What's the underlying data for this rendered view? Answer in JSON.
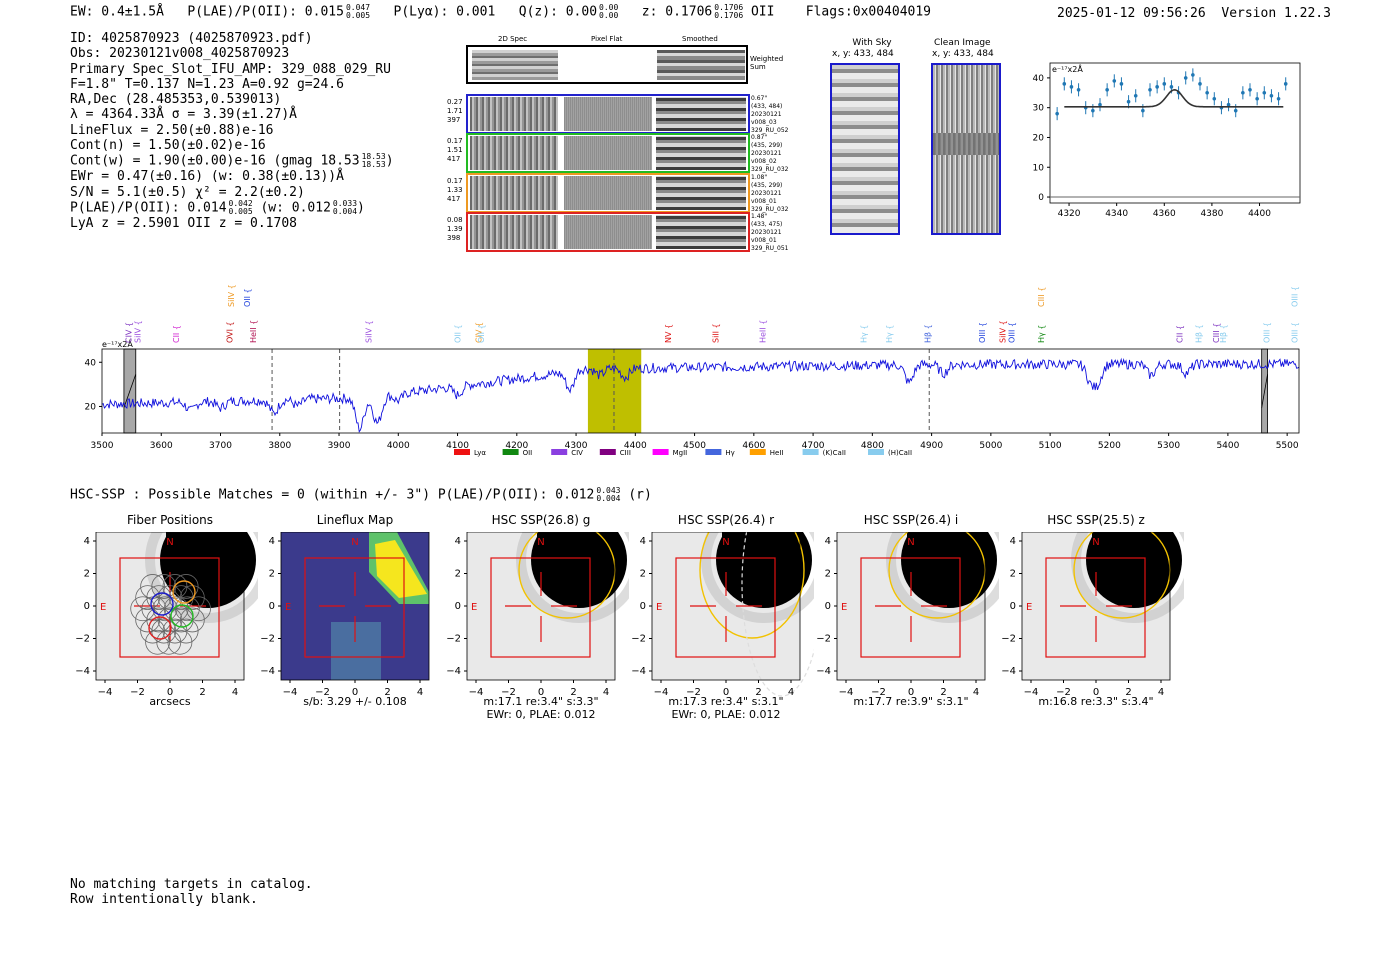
{
  "header": {
    "ew": "EW: 0.4±1.5Å",
    "plae_label": "P(LAE)/P(OII): 0.015",
    "plae_up": "0.047",
    "plae_lo": "0.005",
    "plya": "P(Lyα): 0.001",
    "qz_label": "Q(z): 0.00",
    "qz_up": "0.00",
    "qz_lo": "0.00",
    "z_label": "z: 0.1706",
    "z_up": "0.1706",
    "z_lo": "0.1706",
    "z_line": "OII",
    "flags": "Flags:0x00404019",
    "datetime": "2025-01-12 09:56:26",
    "version": "Version 1.22.3"
  },
  "info": {
    "id": "ID: 4025870923 (4025870923.pdf)",
    "obs": "Obs: 20230121v008_4025870923",
    "primary": "Primary Spec_Slot_IFU_AMP: 329_088_029_RU",
    "params": "F=1.8\"  T=0.137  N=1.23  A=0.92  g=24.6",
    "radec": "RA,Dec (28.485353,0.539013)",
    "lambda": "λ = 4364.33Å  σ = 3.39(±1.27)Å",
    "lineflux": "LineFlux = 2.50(±0.88)e-16",
    "contn": "Cont(n) = 1.50(±0.02)e-16",
    "contw": "Cont(w) = 1.90(±0.00)e-16 (gmag 18.53",
    "gmag_up": "18.53",
    "gmag_lo": "18.53",
    "ewr": "EWr = 0.47(±0.16) (w: 0.38(±0.13))Å",
    "sn": "S/N = 5.1(±0.5)  χ² = 2.2(±0.2)",
    "plae2": "P(LAE)/P(OII): 0.014",
    "plae2_up": "0.042",
    "plae2_lo": "0.005",
    "plae2_w": "(w: 0.012",
    "plae2_w_up": "0.033",
    "plae2_w_lo": "0.004",
    "lya": "LyA z = 2.5901  OII z = 0.1708"
  },
  "cutouts": {
    "col_headers": [
      "2D Spec",
      "Pixel Flat",
      "Smoothed"
    ],
    "weighted_label": [
      "Weighted",
      "Sum"
    ],
    "rows": [
      {
        "left": [
          "0.27",
          "1.71",
          "397"
        ],
        "right": [
          "0.67\"",
          "(433, 484)",
          "20230121",
          "v008_03",
          "329_RU_052"
        ],
        "color": "#2222cc"
      },
      {
        "left": [
          "0.17",
          "1.51",
          "417"
        ],
        "right": [
          "0.87\"",
          "(435, 299)",
          "20230121",
          "v008_02",
          "329_RU_032"
        ],
        "color": "#22bb22"
      },
      {
        "left": [
          "0.17",
          "1.33",
          "417"
        ],
        "right": [
          "1.08\"",
          "(435, 299)",
          "20230121",
          "v008_01",
          "329_RU_032"
        ],
        "color": "#ee9922"
      },
      {
        "left": [
          "0.08",
          "1.39",
          "398"
        ],
        "right": [
          "1.48\"",
          "(433, 475)",
          "20230121",
          "v008_01",
          "329_RU_051"
        ],
        "color": "#dd2222"
      }
    ],
    "with_sky": [
      "With Sky",
      "x, y: 433, 484"
    ],
    "clean_image": [
      "Clean Image",
      "x, y: 433, 484"
    ]
  },
  "zoom_chart_data": {
    "type": "scatter",
    "ylabel_unit": "e⁻¹⁷x2Å",
    "xticks": [
      4320,
      4340,
      4360,
      4380,
      4400
    ],
    "yticks": [
      0,
      10,
      20,
      30,
      40
    ],
    "xlim": [
      4312,
      4417
    ],
    "ylim": [
      -2,
      45
    ],
    "points_x": [
      4315,
      4318,
      4321,
      4324,
      4327,
      4330,
      4333,
      4336,
      4339,
      4342,
      4345,
      4348,
      4351,
      4354,
      4357,
      4360,
      4363,
      4366,
      4369,
      4372,
      4375,
      4378,
      4381,
      4384,
      4387,
      4390,
      4393,
      4396,
      4399,
      4402,
      4405,
      4408,
      4411
    ],
    "points_y": [
      28,
      38,
      37,
      36,
      30,
      29,
      31,
      36,
      39,
      38,
      32,
      34,
      29,
      36,
      37,
      38,
      37,
      35,
      40,
      41,
      38,
      35,
      33,
      30,
      31,
      29,
      35,
      36,
      33,
      35,
      34,
      33,
      38
    ],
    "model_baseline": 30.3,
    "model_peak_x": 4364.3,
    "model_amp": 5.7,
    "model_sigma": 3.39
  },
  "spectrum_chart_data": {
    "type": "line",
    "ylabel_unit": "e⁻¹⁷x2Å",
    "xticks": [
      3500,
      3600,
      3700,
      3800,
      3900,
      4000,
      4100,
      4200,
      4300,
      4400,
      4500,
      4600,
      4700,
      4800,
      4900,
      5000,
      5100,
      5200,
      5300,
      5400,
      5500
    ],
    "yticks": [
      20,
      40
    ],
    "xlim": [
      3500,
      5520
    ],
    "ylim": [
      8,
      46
    ],
    "highlight_band": [
      4320,
      4410
    ],
    "dashed_lines": [
      3787,
      3901,
      4364,
      4896
    ],
    "hatched_bands": [
      [
        3537,
        3557
      ],
      [
        5457,
        5467
      ]
    ],
    "line_labels": [
      {
        "name": "CIV",
        "x": 3545,
        "color": "#7b2fbf"
      },
      {
        "name": "SiIV",
        "x": 3560,
        "color": "#9b4fdf"
      },
      {
        "name": "CII",
        "x": 3625,
        "color": "#d020d0"
      },
      {
        "name": "OVI",
        "x": 3715,
        "color": "#c01010"
      },
      {
        "name": "SiIV",
        "x": 3718,
        "color": "#ee9922",
        "upper": true
      },
      {
        "name": "OII",
        "x": 3745,
        "color": "#2244dd",
        "upper": true
      },
      {
        "name": "HeII",
        "x": 3755,
        "color": "#b01050"
      },
      {
        "name": "SiIV",
        "x": 3950,
        "color": "#9b4fdf"
      },
      {
        "name": "OII",
        "x": 4100,
        "color": "#88ccee"
      },
      {
        "name": "CIV",
        "x": 4135,
        "color": "#ee9922"
      },
      {
        "name": "OII",
        "x": 4140,
        "color": "#88ccee"
      },
      {
        "name": "NV",
        "x": 4455,
        "color": "#dd1111"
      },
      {
        "name": "SiII",
        "x": 4535,
        "color": "#dd1111"
      },
      {
        "name": "HeII",
        "x": 4615,
        "color": "#9b4fdf"
      },
      {
        "name": "Hγ",
        "x": 4785,
        "color": "#88ccee"
      },
      {
        "name": "Hγ",
        "x": 4828,
        "color": "#88ccee"
      },
      {
        "name": "Hβ",
        "x": 4893,
        "color": "#4466dd"
      },
      {
        "name": "OIII",
        "x": 4985,
        "color": "#2244dd"
      },
      {
        "name": "SiIV",
        "x": 5020,
        "color": "#dd1111"
      },
      {
        "name": "OIII",
        "x": 5035,
        "color": "#2244dd"
      },
      {
        "name": "Hγ",
        "x": 5085,
        "color": "#118811"
      },
      {
        "name": "CIII",
        "x": 5085,
        "color": "#ee9922",
        "upper": true
      },
      {
        "name": "CII",
        "x": 5318,
        "color": "#7b2fbf"
      },
      {
        "name": "Hβ",
        "x": 5350,
        "color": "#88ccee"
      },
      {
        "name": "CIII",
        "x": 5380,
        "color": "#7b2fbf"
      },
      {
        "name": "Hβ",
        "x": 5392,
        "color": "#88ccee"
      },
      {
        "name": "OIII",
        "x": 5465,
        "color": "#88ccee"
      },
      {
        "name": "OIII",
        "x": 5512,
        "color": "#88ccee"
      },
      {
        "name": "OIII",
        "x": 5512,
        "color": "#88ccee",
        "upper": true
      }
    ],
    "legend": [
      {
        "name": "Lyα",
        "color": "#ee1111"
      },
      {
        "name": "OII",
        "color": "#118811"
      },
      {
        "name": "CIV",
        "color": "#8a3fe0"
      },
      {
        "name": "CIII",
        "color": "#800080"
      },
      {
        "name": "MgII",
        "color": "#ff00ff"
      },
      {
        "name": "Hγ",
        "color": "#4466dd"
      },
      {
        "name": "HeII",
        "color": "#ffa000"
      },
      {
        "name": "(K)CaII",
        "color": "#88ccee"
      },
      {
        "name": "(H)CaII",
        "color": "#88ccee"
      }
    ]
  },
  "hsc": {
    "title": "HSC-SSP : Possible Matches = 0 (within +/- 3\")  P(LAE)/P(OII): 0.012",
    "plae_up": "0.043",
    "plae_lo": "0.004",
    "band": "(r)",
    "panels": [
      {
        "title": "Fiber Positions",
        "caption1": "arcsecs",
        "caption2": ""
      },
      {
        "title": "Lineflux Map",
        "caption1": "s/b: 3.29 +/- 0.108",
        "caption2": ""
      },
      {
        "title": "HSC SSP(26.8) g",
        "caption1": "m:17.1  re:3.4\"  s:3.3\"",
        "caption2": "EWr: 0, PLAE: 0.012"
      },
      {
        "title": "HSC SSP(26.4) r",
        "caption1": "m:17.3  re:3.4\"  s:3.1\"",
        "caption2": "EWr: 0, PLAE: 0.012"
      },
      {
        "title": "HSC SSP(26.4) i",
        "caption1": "m:17.7  re:3.9\"  s:3.1\"",
        "caption2": ""
      },
      {
        "title": "HSC SSP(25.5) z",
        "caption1": "m:16.8  re:3.3\"  s:3.4\"",
        "caption2": ""
      }
    ],
    "axis_ticks": [
      "4",
      "2",
      "0",
      "−2",
      "−4"
    ],
    "xaxis_ticks": [
      "−4",
      "−2",
      "0",
      "2",
      "4"
    ],
    "north": "N",
    "east": "E"
  },
  "footer": {
    "line1": "No matching targets in catalog.",
    "line2": "Row intentionally blank."
  }
}
